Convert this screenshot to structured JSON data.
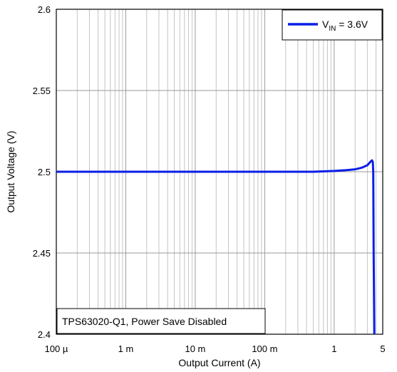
{
  "chart_data": {
    "type": "line",
    "xscale": "log",
    "yscale": "linear",
    "xlim": [
      0.0001,
      5
    ],
    "ylim": [
      2.4,
      2.6
    ],
    "x_ticks": [
      0.0001,
      0.001,
      0.01,
      0.1,
      1,
      5
    ],
    "x_tick_labels": [
      "100 µ",
      "1 m",
      "10 m",
      "100 m",
      "1",
      "5"
    ],
    "y_ticks": [
      2.4,
      2.45,
      2.5,
      2.55,
      2.6
    ],
    "y_tick_labels": [
      "2.4",
      "2.45",
      "2.5",
      "2.55",
      "2.6"
    ],
    "xlabel": "Output Current (A)",
    "ylabel": "Output Voltage (V)",
    "grid": true,
    "legend_position": "top-right",
    "legend": {
      "main": "V",
      "sub": "IN",
      "rest": " = 3.6V"
    },
    "annotation": "TPS63020-Q1, Power Save Disabled",
    "series": [
      {
        "name": "VIN = 3.6V",
        "color": "#0a1ee6",
        "x": [
          0.0001,
          0.001,
          0.01,
          0.1,
          0.5,
          1,
          1.5,
          2,
          2.5,
          3,
          3.3,
          3.5,
          3.6,
          3.65,
          3.7,
          3.75,
          3.78
        ],
        "y": [
          2.5,
          2.5,
          2.5,
          2.5,
          2.5,
          2.5005,
          2.501,
          2.5015,
          2.5025,
          2.504,
          2.506,
          2.507,
          2.506,
          2.5,
          2.45,
          2.42,
          2.4
        ]
      }
    ]
  }
}
